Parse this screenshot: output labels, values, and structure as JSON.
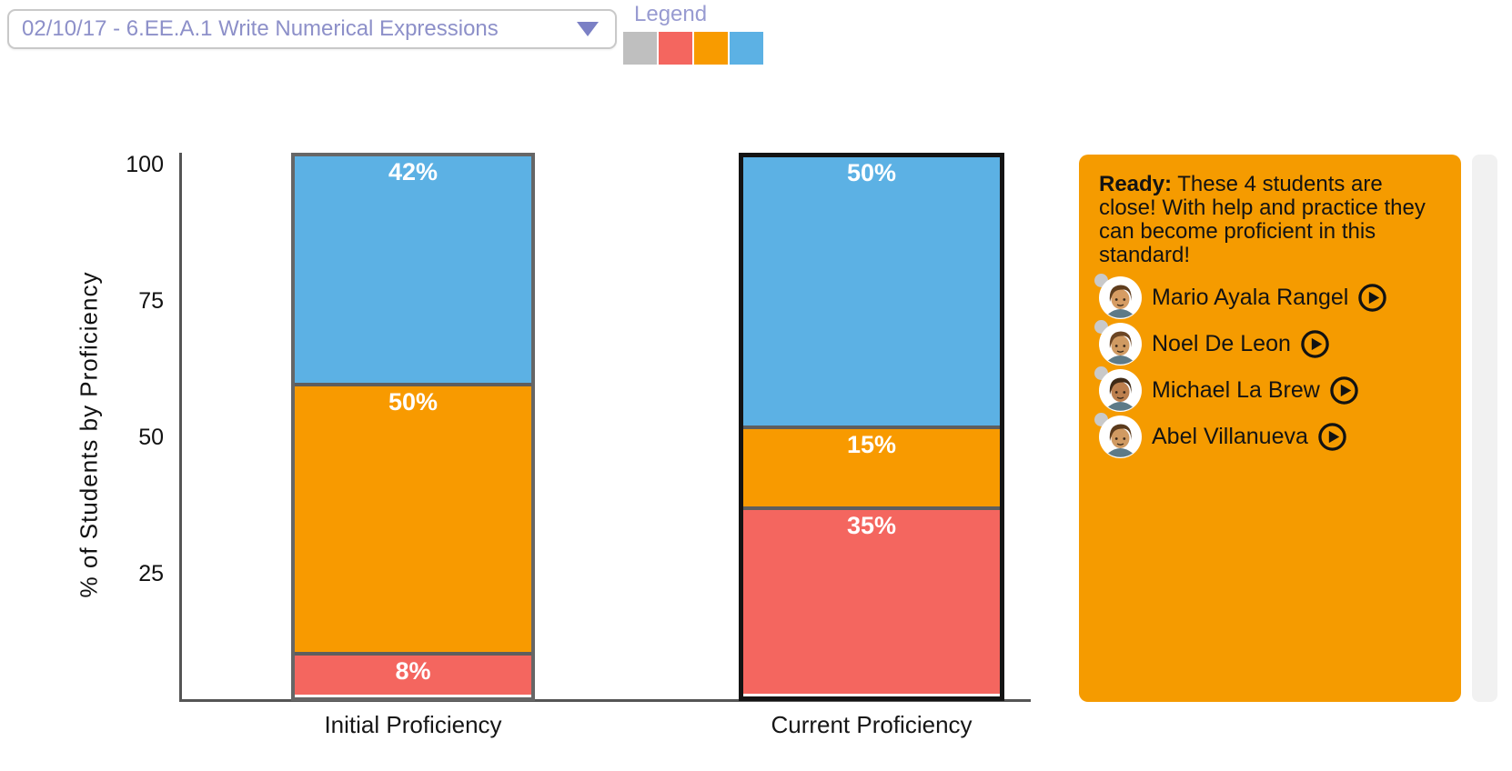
{
  "header": {
    "dropdown_value": "02/10/17 - 6.EE.A.1 Write Numerical Expressions",
    "legend_label": "Legend",
    "legend_colors": [
      "#bfbfbf",
      "#f4665f",
      "#f89b00",
      "#5cb1e4"
    ]
  },
  "chart_data": {
    "type": "bar",
    "stacked": true,
    "categories": [
      "Initial Proficiency",
      "Current Proficiency"
    ],
    "series": [
      {
        "name": "blue",
        "color": "#5cb1e4",
        "values": [
          42,
          50
        ]
      },
      {
        "name": "orange",
        "color": "#f89a00",
        "values": [
          50,
          15
        ]
      },
      {
        "name": "red",
        "color": "#f4665f",
        "values": [
          8,
          35
        ]
      }
    ],
    "value_label_suffix": "%",
    "bar_labels": [
      [
        "42%",
        "50%",
        "8%"
      ],
      [
        "50%",
        "15%",
        "35%"
      ]
    ],
    "ylabel": "% of Students by Proficiency",
    "yticks": [
      100,
      75,
      50,
      25
    ],
    "ylim": [
      0,
      100
    ],
    "grid": false,
    "legend_position": "top-left",
    "selected_category_index": 1
  },
  "panel": {
    "heading": "Ready:",
    "body": "These 4 students are close! With help and practice they can become proficient in this standard!",
    "background": "#f59b00",
    "students": [
      {
        "name": "Mario Ayala Rangel",
        "avatar": {
          "skin": "#d69c63",
          "hair": "#5f3d1e"
        }
      },
      {
        "name": "Noel De Leon",
        "avatar": {
          "skin": "#cf9a62",
          "hair": "#6b4524"
        }
      },
      {
        "name": "Michael La Brew",
        "avatar": {
          "skin": "#bc7f4e",
          "hair": "#3f2a16"
        }
      },
      {
        "name": "Abel Villanueva",
        "avatar": {
          "skin": "#d09a62",
          "hair": "#5a3a1c"
        }
      }
    ]
  }
}
